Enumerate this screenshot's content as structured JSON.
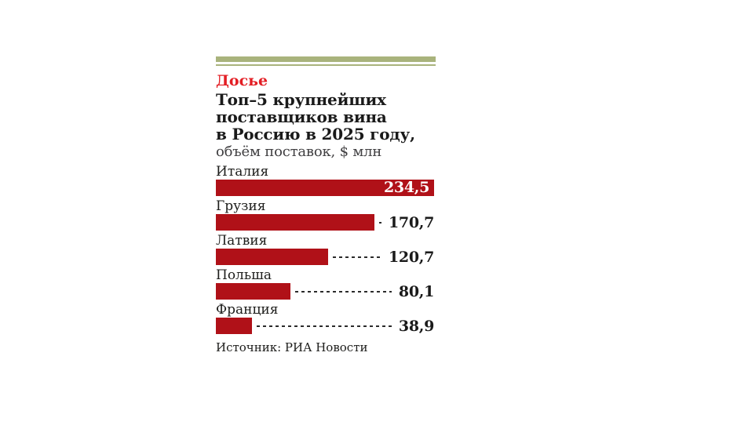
{
  "header": {
    "kicker": "Досье",
    "title_multiline": "Топ–5 крупнейших\nпоставщиков вина\nв Россию в 2025 году,",
    "subtitle": "объём поставок, $ млн"
  },
  "footer": {
    "source": "Источник: РИА Новости"
  },
  "colors": {
    "accent_olive": "#a9b37c",
    "bar_red": "#b01118",
    "kicker_red": "#e31e24",
    "text_black": "#1a1a1a",
    "subtitle_gray": "#414042"
  },
  "chart_data": {
    "type": "bar",
    "orientation": "horizontal",
    "title": "Топ–5 крупнейших поставщиков вина в Россию в 2025 году,",
    "subtitle": "объём поставок, $ млн",
    "kicker": "Досье",
    "categories": [
      "Италия",
      "Грузия",
      "Латвия",
      "Польша",
      "Франция"
    ],
    "values": [
      234.5,
      170.7,
      120.7,
      80.1,
      38.9
    ],
    "value_labels": [
      "234,5",
      "170,7",
      "120,7",
      "80,1",
      "38,9"
    ],
    "value_placement": [
      "inside",
      "outside",
      "outside",
      "outside",
      "outside"
    ],
    "xlim": [
      0,
      234.5
    ],
    "grid": false,
    "legend": false,
    "leader_lines": "dashed",
    "source": "Источник: РИА Новости",
    "bar_color": "#b01118"
  }
}
